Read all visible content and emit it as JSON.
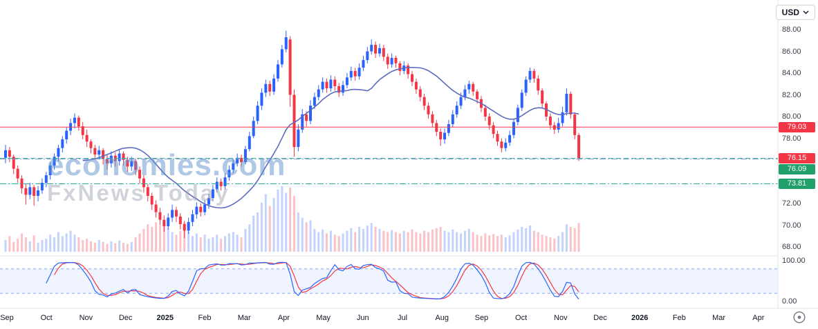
{
  "header": {
    "currency_selector": {
      "label": "USD"
    }
  },
  "icons": {
    "currency_chevron": "chevron-down",
    "footer_badge": "target"
  },
  "watermark": {
    "line1": "economies.com",
    "line2": "FxNews Today"
  },
  "chart_data": {
    "type": "candlestick",
    "quote_currency": "USD",
    "x_axis_labels": [
      "Sep",
      "Oct",
      "Nov",
      "Dec",
      "2025",
      "Feb",
      "Mar",
      "Apr",
      "May",
      "Jun",
      "Jul",
      "Aug",
      "Sep",
      "Oct",
      "Nov",
      "Dec",
      "2026",
      "Feb",
      "Mar",
      "Apr"
    ],
    "y_axis_labels": [
      "88.00",
      "86.00",
      "84.00",
      "82.00",
      "80.00",
      "78.00",
      "72.00",
      "70.00",
      "68.00"
    ],
    "y_axis_range": [
      68,
      88
    ],
    "oscillator_axis_labels": [
      "100.00",
      "0.00"
    ],
    "price_lines": [
      {
        "value": 79.03,
        "color": "#f23645",
        "dash": ""
      },
      {
        "value": 76.15,
        "color": "#26a69a",
        "dash": "7,4"
      },
      {
        "value": 76.09,
        "color": "#7e9bd0",
        "dash": "9,3,2,3"
      },
      {
        "value": 73.81,
        "color": "#26a69a",
        "dash": "9,3,2,3"
      }
    ],
    "price_badges": [
      {
        "text": "79.03",
        "value": 79.03,
        "bg": "#f23645"
      },
      {
        "text": "76.15",
        "value": 76.15,
        "bg": "#f23645"
      },
      {
        "text": "76.09",
        "value": 76.09,
        "bg": "#22a06b"
      },
      {
        "text": "73.81",
        "value": 73.81,
        "bg": "#22a06b"
      }
    ],
    "colors": {
      "up": "#2962ff",
      "down": "#f23645",
      "ma_line": "#5c6bc0",
      "volume_up": "rgba(41,98,255,0.28)",
      "volume_down": "rgba(242,54,69,0.30)",
      "osc_k": "#2962ff",
      "osc_d": "#f23645",
      "osc_band_fill": "rgba(41,98,255,0.07)",
      "osc_band_line": "rgba(41,98,255,0.55)",
      "frame": "#e0e3eb"
    },
    "overlays": {
      "ma_period": 20
    },
    "oscillator": {
      "name": "stochastic",
      "k_period": 10,
      "k_smooth": 2,
      "d_period": 3,
      "upper_band": 80,
      "lower_band": 20,
      "range": [
        0,
        100
      ],
      "legend_position": "none",
      "grid": "dashed-bands"
    },
    "candles": [
      [
        76.2,
        77.4,
        75.7,
        76.9
      ],
      [
        76.9,
        77.2,
        75.8,
        76.3
      ],
      [
        76.3,
        76.5,
        74.7,
        75.2
      ],
      [
        75.2,
        75.5,
        73.9,
        74.3
      ],
      [
        74.3,
        74.6,
        72.9,
        73.4
      ],
      [
        73.4,
        73.8,
        71.9,
        72.8
      ],
      [
        72.8,
        73.9,
        72.4,
        73.5
      ],
      [
        73.5,
        73.7,
        71.8,
        72.7
      ],
      [
        72.7,
        73.6,
        72.2,
        73.2
      ],
      [
        73.2,
        74.3,
        72.9,
        73.9
      ],
      [
        73.9,
        74.9,
        73.5,
        74.6
      ],
      [
        74.6,
        75.8,
        74.2,
        75.5
      ],
      [
        75.5,
        76.6,
        75.1,
        76.3
      ],
      [
        76.3,
        77.4,
        75.9,
        77.1
      ],
      [
        77.1,
        78.2,
        76.7,
        77.9
      ],
      [
        77.9,
        79.0,
        77.5,
        78.7
      ],
      [
        78.7,
        79.8,
        78.3,
        79.4
      ],
      [
        79.4,
        80.3,
        78.9,
        79.9
      ],
      [
        79.9,
        80.1,
        78.7,
        79.1
      ],
      [
        79.1,
        79.5,
        77.9,
        78.3
      ],
      [
        78.3,
        78.8,
        77.2,
        77.7
      ],
      [
        77.7,
        77.9,
        76.6,
        77.1
      ],
      [
        77.1,
        77.4,
        76.0,
        76.5
      ],
      [
        76.5,
        77.3,
        76.1,
        76.9
      ],
      [
        76.9,
        77.1,
        75.6,
        76.1
      ],
      [
        76.1,
        76.5,
        75.1,
        75.7
      ],
      [
        75.7,
        76.8,
        75.3,
        76.4
      ],
      [
        76.4,
        76.7,
        75.4,
        75.9
      ],
      [
        75.9,
        77.0,
        75.5,
        76.6
      ],
      [
        76.6,
        76.8,
        75.5,
        76.0
      ],
      [
        76.0,
        76.3,
        74.9,
        75.4
      ],
      [
        75.4,
        76.3,
        75.0,
        75.9
      ],
      [
        75.9,
        76.1,
        74.6,
        75.1
      ],
      [
        75.1,
        75.4,
        73.8,
        74.3
      ],
      [
        74.3,
        74.6,
        73.0,
        73.5
      ],
      [
        73.5,
        73.8,
        72.2,
        72.7
      ],
      [
        72.7,
        73.0,
        71.4,
        71.9
      ],
      [
        71.9,
        72.3,
        70.7,
        71.2
      ],
      [
        71.2,
        71.6,
        70.0,
        70.5
      ],
      [
        70.5,
        70.9,
        69.4,
        69.9
      ],
      [
        69.9,
        71.1,
        69.6,
        70.7
      ],
      [
        70.7,
        71.9,
        70.3,
        71.4
      ],
      [
        71.4,
        71.7,
        70.3,
        70.8
      ],
      [
        70.8,
        71.1,
        69.6,
        70.1
      ],
      [
        70.1,
        70.4,
        68.8,
        69.5
      ],
      [
        69.5,
        70.7,
        69.2,
        70.3
      ],
      [
        70.3,
        71.4,
        69.9,
        71.0
      ],
      [
        71.0,
        72.1,
        70.6,
        71.7
      ],
      [
        71.7,
        72.0,
        70.8,
        71.2
      ],
      [
        71.2,
        72.3,
        70.9,
        71.9
      ],
      [
        71.9,
        72.9,
        71.5,
        72.5
      ],
      [
        72.5,
        73.7,
        72.2,
        73.3
      ],
      [
        73.3,
        74.4,
        73.0,
        74.0
      ],
      [
        74.0,
        74.3,
        73.2,
        73.6
      ],
      [
        73.6,
        74.8,
        73.3,
        74.4
      ],
      [
        74.4,
        75.5,
        74.1,
        75.1
      ],
      [
        75.1,
        76.1,
        74.8,
        75.7
      ],
      [
        75.7,
        76.6,
        75.4,
        76.2
      ],
      [
        76.2,
        76.5,
        75.4,
        75.8
      ],
      [
        75.8,
        77.3,
        75.6,
        77.0
      ],
      [
        77.0,
        78.6,
        76.8,
        78.2
      ],
      [
        78.2,
        80.0,
        78.0,
        79.6
      ],
      [
        79.6,
        81.4,
        79.3,
        81.0
      ],
      [
        81.0,
        82.6,
        80.6,
        82.2
      ],
      [
        82.2,
        83.4,
        81.8,
        83.0
      ],
      [
        83.0,
        83.3,
        81.9,
        82.3
      ],
      [
        82.3,
        83.9,
        82.0,
        83.5
      ],
      [
        83.5,
        85.2,
        83.2,
        84.8
      ],
      [
        84.8,
        86.6,
        84.5,
        86.2
      ],
      [
        86.2,
        87.9,
        85.9,
        87.3
      ],
      [
        87.1,
        87.4,
        80.9,
        82.0
      ],
      [
        82.0,
        82.5,
        76.3,
        77.2
      ],
      [
        77.2,
        79.3,
        76.8,
        78.8
      ],
      [
        78.8,
        80.7,
        78.5,
        80.2
      ],
      [
        80.2,
        80.5,
        79.1,
        79.6
      ],
      [
        79.6,
        81.5,
        79.3,
        81.0
      ],
      [
        81.0,
        82.2,
        80.7,
        81.8
      ],
      [
        81.8,
        82.9,
        81.5,
        82.5
      ],
      [
        82.5,
        83.6,
        82.2,
        83.2
      ],
      [
        83.2,
        83.5,
        82.2,
        82.6
      ],
      [
        82.6,
        83.8,
        82.3,
        83.4
      ],
      [
        83.4,
        83.7,
        82.4,
        82.8
      ],
      [
        82.8,
        83.1,
        81.8,
        82.2
      ],
      [
        82.2,
        83.3,
        81.9,
        82.9
      ],
      [
        82.9,
        84.0,
        82.6,
        83.6
      ],
      [
        83.6,
        84.6,
        83.3,
        84.2
      ],
      [
        84.2,
        84.5,
        83.3,
        83.7
      ],
      [
        83.7,
        84.9,
        83.4,
        84.5
      ],
      [
        84.5,
        85.6,
        84.2,
        85.2
      ],
      [
        85.2,
        86.4,
        84.9,
        86.0
      ],
      [
        86.0,
        87.1,
        85.7,
        86.6
      ],
      [
        86.6,
        86.9,
        85.4,
        85.8
      ],
      [
        85.8,
        86.7,
        85.5,
        86.3
      ],
      [
        86.3,
        86.6,
        85.1,
        85.5
      ],
      [
        85.5,
        85.8,
        84.4,
        84.8
      ],
      [
        84.8,
        85.8,
        84.5,
        85.4
      ],
      [
        85.4,
        85.6,
        84.5,
        84.9
      ],
      [
        84.9,
        85.1,
        83.8,
        84.2
      ],
      [
        84.2,
        85.1,
        83.9,
        84.7
      ],
      [
        84.7,
        84.9,
        83.5,
        83.9
      ],
      [
        83.9,
        84.2,
        82.8,
        83.2
      ],
      [
        83.2,
        83.5,
        82.1,
        82.5
      ],
      [
        82.5,
        82.8,
        81.4,
        81.8
      ],
      [
        81.8,
        82.1,
        80.6,
        81.0
      ],
      [
        81.0,
        81.3,
        79.8,
        80.2
      ],
      [
        80.2,
        80.5,
        79.0,
        79.4
      ],
      [
        79.4,
        79.7,
        78.2,
        78.6
      ],
      [
        78.6,
        78.9,
        77.3,
        77.9
      ],
      [
        77.9,
        78.9,
        77.5,
        78.5
      ],
      [
        78.5,
        79.7,
        78.2,
        79.3
      ],
      [
        79.3,
        80.6,
        79.0,
        80.2
      ],
      [
        80.2,
        81.4,
        79.9,
        81.0
      ],
      [
        81.0,
        82.2,
        80.7,
        81.8
      ],
      [
        81.8,
        82.9,
        81.5,
        82.5
      ],
      [
        82.5,
        83.3,
        82.1,
        83.0
      ],
      [
        83.0,
        83.2,
        81.9,
        82.3
      ],
      [
        82.3,
        82.5,
        81.2,
        81.6
      ],
      [
        81.6,
        81.9,
        80.4,
        80.8
      ],
      [
        80.8,
        81.1,
        79.6,
        80.0
      ],
      [
        80.0,
        80.3,
        78.8,
        79.2
      ],
      [
        79.2,
        79.5,
        78.0,
        78.4
      ],
      [
        78.4,
        78.7,
        77.3,
        77.7
      ],
      [
        77.7,
        78.0,
        76.7,
        77.1
      ],
      [
        77.1,
        78.0,
        76.8,
        77.6
      ],
      [
        77.6,
        78.7,
        77.3,
        78.3
      ],
      [
        78.3,
        79.8,
        78.0,
        79.5
      ],
      [
        79.5,
        81.1,
        79.2,
        80.8
      ],
      [
        80.8,
        82.5,
        80.5,
        82.2
      ],
      [
        82.2,
        83.7,
        81.9,
        83.4
      ],
      [
        83.4,
        84.5,
        83.1,
        84.2
      ],
      [
        84.2,
        84.4,
        83.1,
        83.5
      ],
      [
        83.5,
        83.8,
        82.0,
        82.4
      ],
      [
        82.4,
        82.6,
        80.8,
        81.2
      ],
      [
        81.2,
        81.4,
        79.6,
        80.0
      ],
      [
        80.0,
        80.3,
        78.8,
        79.2
      ],
      [
        79.2,
        79.5,
        78.4,
        78.8
      ],
      [
        78.8,
        79.9,
        78.5,
        79.4
      ],
      [
        79.4,
        80.9,
        79.1,
        80.4
      ],
      [
        80.4,
        82.6,
        80.1,
        82.1
      ],
      [
        82.1,
        82.3,
        79.8,
        80.2
      ],
      [
        80.2,
        80.4,
        77.9,
        78.3
      ],
      [
        78.3,
        78.5,
        75.9,
        76.15
      ]
    ],
    "volume": [
      18,
      24,
      15,
      20,
      28,
      22,
      16,
      25,
      14,
      18,
      20,
      26,
      22,
      30,
      24,
      28,
      32,
      26,
      22,
      18,
      20,
      16,
      14,
      18,
      15,
      12,
      16,
      13,
      17,
      14,
      12,
      15,
      22,
      28,
      35,
      42,
      38,
      45,
      40,
      48,
      36,
      30,
      26,
      32,
      44,
      30,
      24,
      28,
      22,
      26,
      20,
      22,
      26,
      20,
      24,
      28,
      30,
      26,
      22,
      35,
      42,
      55,
      60,
      75,
      88,
      70,
      82,
      95,
      100,
      90,
      98,
      85,
      60,
      52,
      45,
      48,
      35,
      30,
      34,
      28,
      32,
      26,
      24,
      28,
      32,
      36,
      30,
      38,
      35,
      40,
      44,
      38,
      35,
      32,
      30,
      33,
      30,
      28,
      32,
      30,
      34,
      30,
      28,
      32,
      30,
      34,
      36,
      38,
      32,
      30,
      34,
      30,
      28,
      32,
      35,
      30,
      26,
      24,
      28,
      25,
      27,
      24,
      26,
      22,
      25,
      30,
      34,
      38,
      36,
      40,
      32,
      30,
      26,
      24,
      22,
      20,
      24,
      30,
      42,
      38,
      36,
      44
    ]
  }
}
